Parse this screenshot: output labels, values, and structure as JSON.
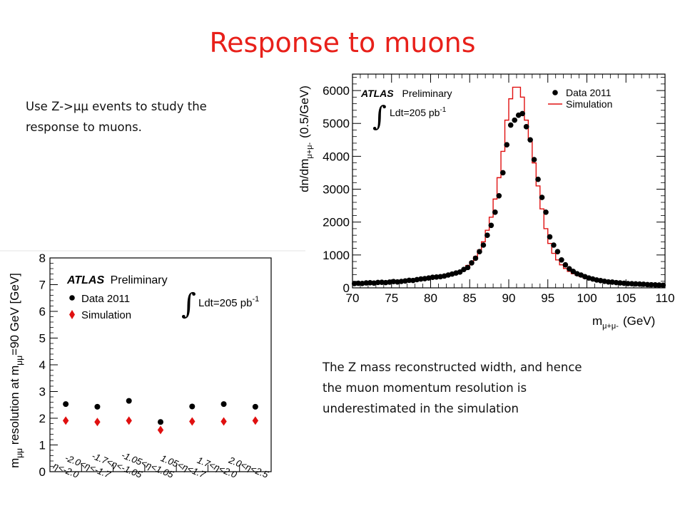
{
  "slide": {
    "title": "Response to muons",
    "text1_lines": [
      "Use Z->μμ events to study the",
      "response to muons."
    ],
    "text2_lines": [
      "The Z mass reconstructed width, and hence",
      "the muon momentum resolution is",
      "underestimated in the simulation"
    ]
  },
  "colors": {
    "title": "#e8201a",
    "simulation": "#e01010",
    "data": "#000000"
  },
  "chart_data": [
    {
      "type": "scatter",
      "title": "",
      "xlabel": "",
      "ylabel": "m_μμ resolution at m_μμ=90 GeV [GeV]",
      "ylabel_prefix": "m",
      "ylabel_sub": "μμ",
      "ylabel_middle": " resolution at m",
      "ylabel_sub2": "μμ",
      "ylabel_suffix": "=90 GeV [GeV]",
      "ylim": [
        0,
        8
      ],
      "yticks": [
        "0",
        "1",
        "2",
        "3",
        "4",
        "5",
        "6",
        "7",
        "8"
      ],
      "categories": [
        "η<-2.0",
        "-2.0<η<-1.7",
        "-1.7<η<-1.05",
        "-1.05<η<1.05",
        "1.05<η<1.7",
        "1.7<η<2.0",
        "2.0<η<2.5"
      ],
      "series": [
        {
          "name": "Data 2011",
          "marker": "circle",
          "values": [
            2.53,
            2.43,
            2.65,
            1.86,
            2.44,
            2.53,
            2.43
          ]
        },
        {
          "name": "Simulation",
          "marker": "diamond",
          "values": [
            1.91,
            1.86,
            1.91,
            1.56,
            1.88,
            1.88,
            1.91
          ]
        }
      ],
      "legend": {
        "placement": "top-left",
        "header_bold": "ATLAS",
        "header_rest": "Preliminary",
        "lumi": "Ldt=205 pb",
        "lumi_exp": "-1"
      },
      "grid": false
    },
    {
      "type": "line",
      "title": "",
      "xlabel": "m_μ+μ- (GeV)",
      "xlabel_prefix": "m",
      "xlabel_sub": "μ+μ-",
      "xlabel_suffix": "(GeV)",
      "ylabel": "dn/dm_μ+μ- (0.5/GeV)",
      "ylabel_prefix": "dn/dm",
      "ylabel_sub": "μ+μ-",
      "ylabel_suffix": "(0.5/GeV)",
      "xlim": [
        70,
        110
      ],
      "ylim": [
        0,
        6500
      ],
      "xticks": [
        "70",
        "75",
        "80",
        "85",
        "90",
        "95",
        "100",
        "105",
        "110"
      ],
      "yticks": [
        "0",
        "1000",
        "2000",
        "3000",
        "4000",
        "5000",
        "6000"
      ],
      "series": [
        {
          "name": "Data 2011",
          "marker": "circle",
          "x": [
            70.25,
            70.75,
            71.25,
            71.75,
            72.25,
            72.75,
            73.25,
            73.75,
            74.25,
            74.75,
            75.25,
            75.75,
            76.25,
            76.75,
            77.25,
            77.75,
            78.25,
            78.75,
            79.25,
            79.75,
            80.25,
            80.75,
            81.25,
            81.75,
            82.25,
            82.75,
            83.25,
            83.75,
            84.25,
            84.75,
            85.25,
            85.75,
            86.25,
            86.75,
            87.25,
            87.75,
            88.25,
            88.75,
            89.25,
            89.75,
            90.25,
            90.75,
            91.25,
            91.75,
            92.25,
            92.75,
            93.25,
            93.75,
            94.25,
            94.75,
            95.25,
            95.75,
            96.25,
            96.75,
            97.25,
            97.75,
            98.25,
            98.75,
            99.25,
            99.75,
            100.25,
            100.75,
            101.25,
            101.75,
            102.25,
            102.75,
            103.25,
            103.75,
            104.25,
            104.75,
            105.25,
            105.75,
            106.25,
            106.75,
            107.25,
            107.75,
            108.25,
            108.75,
            109.25,
            109.75
          ],
          "y": [
            130,
            140,
            135,
            150,
            155,
            145,
            165,
            170,
            160,
            175,
            190,
            180,
            195,
            210,
            230,
            225,
            250,
            270,
            280,
            300,
            320,
            330,
            340,
            360,
            390,
            420,
            450,
            480,
            560,
            620,
            760,
            900,
            1100,
            1300,
            1600,
            1900,
            2300,
            2800,
            3500,
            4350,
            4950,
            5100,
            5250,
            5300,
            4900,
            4500,
            3900,
            3300,
            2750,
            2300,
            1550,
            1300,
            1100,
            850,
            700,
            580,
            500,
            430,
            390,
            340,
            300,
            270,
            240,
            220,
            200,
            180,
            175,
            160,
            150,
            140,
            130,
            125,
            120,
            115,
            110,
            100,
            95,
            90,
            85,
            80
          ]
        },
        {
          "name": "Simulation",
          "marker": "line",
          "x": [
            70.25,
            70.75,
            71.25,
            71.75,
            72.25,
            72.75,
            73.25,
            73.75,
            74.25,
            74.75,
            75.25,
            75.75,
            76.25,
            76.75,
            77.25,
            77.75,
            78.25,
            78.75,
            79.25,
            79.75,
            80.25,
            80.75,
            81.25,
            81.75,
            82.25,
            82.75,
            83.25,
            83.75,
            84.25,
            84.75,
            85.25,
            85.75,
            86.25,
            86.75,
            87.25,
            87.75,
            88.25,
            88.75,
            89.25,
            89.75,
            90.25,
            90.75,
            91.25,
            91.75,
            92.25,
            92.75,
            93.25,
            93.75,
            94.25,
            94.75,
            95.25,
            95.75,
            96.25,
            96.75,
            97.25,
            97.75,
            98.25,
            98.75,
            99.25,
            99.75,
            100.25,
            100.75,
            101.25,
            101.75,
            102.25,
            102.75,
            103.25,
            103.75,
            104.25,
            104.75,
            105.25,
            105.75,
            106.25,
            106.75,
            107.25,
            107.75,
            108.25,
            108.75,
            109.25,
            109.75
          ],
          "y": [
            110,
            110,
            115,
            120,
            125,
            130,
            135,
            140,
            145,
            150,
            155,
            165,
            175,
            185,
            195,
            205,
            220,
            235,
            250,
            270,
            290,
            310,
            330,
            350,
            380,
            410,
            450,
            500,
            580,
            680,
            800,
            950,
            1150,
            1400,
            1750,
            2150,
            2700,
            3350,
            4150,
            5100,
            5750,
            6100,
            6100,
            5800,
            5100,
            4500,
            3800,
            3100,
            2400,
            1800,
            1350,
            1050,
            850,
            700,
            590,
            500,
            430,
            380,
            340,
            300,
            270,
            245,
            220,
            200,
            185,
            170,
            155,
            145,
            135,
            125,
            118,
            110,
            105,
            100,
            95,
            90,
            85,
            80,
            78,
            75
          ]
        }
      ],
      "legend": {
        "placement": "top-right",
        "header_bold": "ATLAS",
        "header_rest": "Preliminary",
        "lumi": "Ldt=205 pb",
        "lumi_exp": "-1"
      },
      "grid": false
    }
  ]
}
